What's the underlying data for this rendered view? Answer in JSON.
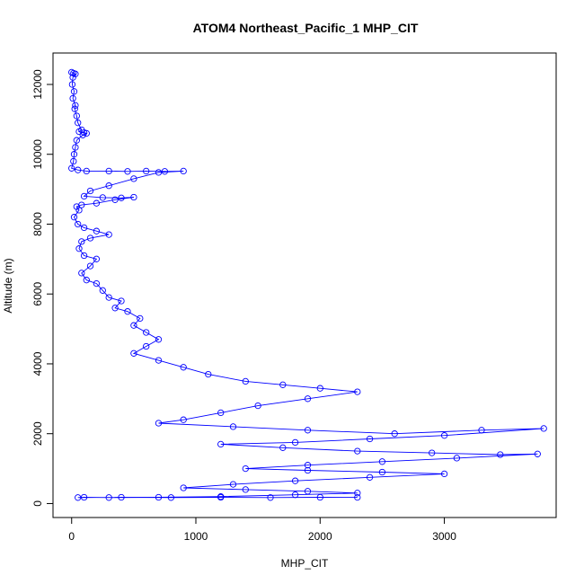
{
  "chart_data": {
    "type": "line",
    "title": "ATOM4 Northeast_Pacific_1 MHP_CIT",
    "xlabel": "MHP_CIT",
    "ylabel": "Altitude (m)",
    "xlim": [
      -150,
      3900
    ],
    "ylim": [
      -400,
      12900
    ],
    "x_ticks": [
      0,
      1000,
      2000,
      3000
    ],
    "x_tick_labels": [
      "0",
      "1000",
      "2000",
      "3000"
    ],
    "y_ticks": [
      0,
      2000,
      4000,
      6000,
      8000,
      10000,
      12000
    ],
    "y_tick_labels": [
      "0",
      "2000",
      "4000",
      "6000",
      "8000",
      "10000",
      "12000"
    ],
    "grid": false,
    "marker": "open-circle",
    "series": [
      {
        "color": "#0000ff",
        "points": [
          [
            0,
            12350
          ],
          [
            15,
            12320
          ],
          [
            30,
            12300
          ],
          [
            10,
            12200
          ],
          [
            5,
            12000
          ],
          [
            20,
            11800
          ],
          [
            10,
            11600
          ],
          [
            30,
            11400
          ],
          [
            25,
            11300
          ],
          [
            40,
            11100
          ],
          [
            50,
            10900
          ],
          [
            80,
            10700
          ],
          [
            60,
            10650
          ],
          [
            100,
            10620
          ],
          [
            120,
            10600
          ],
          [
            90,
            10550
          ],
          [
            40,
            10400
          ],
          [
            30,
            10200
          ],
          [
            20,
            10000
          ],
          [
            15,
            9800
          ],
          [
            0,
            9600
          ],
          [
            50,
            9550
          ],
          [
            120,
            9520
          ],
          [
            300,
            9520
          ],
          [
            450,
            9510
          ],
          [
            600,
            9520
          ],
          [
            750,
            9510
          ],
          [
            900,
            9520
          ],
          [
            700,
            9480
          ],
          [
            500,
            9300
          ],
          [
            300,
            9100
          ],
          [
            150,
            8950
          ],
          [
            100,
            8800
          ],
          [
            250,
            8760
          ],
          [
            400,
            8750
          ],
          [
            500,
            8770
          ],
          [
            350,
            8700
          ],
          [
            200,
            8600
          ],
          [
            80,
            8550
          ],
          [
            40,
            8500
          ],
          [
            60,
            8400
          ],
          [
            20,
            8200
          ],
          [
            50,
            8000
          ],
          [
            100,
            7900
          ],
          [
            200,
            7800
          ],
          [
            300,
            7700
          ],
          [
            150,
            7600
          ],
          [
            80,
            7500
          ],
          [
            60,
            7300
          ],
          [
            100,
            7100
          ],
          [
            200,
            7000
          ],
          [
            150,
            6800
          ],
          [
            80,
            6600
          ],
          [
            120,
            6400
          ],
          [
            200,
            6300
          ],
          [
            250,
            6100
          ],
          [
            300,
            5900
          ],
          [
            400,
            5800
          ],
          [
            350,
            5600
          ],
          [
            450,
            5500
          ],
          [
            550,
            5300
          ],
          [
            500,
            5100
          ],
          [
            600,
            4900
          ],
          [
            700,
            4700
          ],
          [
            600,
            4500
          ],
          [
            500,
            4300
          ],
          [
            700,
            4100
          ],
          [
            900,
            3900
          ],
          [
            1100,
            3700
          ],
          [
            1400,
            3500
          ],
          [
            1700,
            3400
          ],
          [
            2000,
            3300
          ],
          [
            2300,
            3200
          ],
          [
            1900,
            3000
          ],
          [
            1500,
            2800
          ],
          [
            1200,
            2600
          ],
          [
            900,
            2400
          ],
          [
            700,
            2300
          ],
          [
            1300,
            2200
          ],
          [
            1900,
            2100
          ],
          [
            2600,
            2000
          ],
          [
            3300,
            2100
          ],
          [
            3800,
            2150
          ],
          [
            3000,
            1950
          ],
          [
            2400,
            1850
          ],
          [
            1800,
            1750
          ],
          [
            1200,
            1700
          ],
          [
            1700,
            1600
          ],
          [
            2300,
            1500
          ],
          [
            2900,
            1450
          ],
          [
            3450,
            1400
          ],
          [
            3750,
            1420
          ],
          [
            3100,
            1300
          ],
          [
            2500,
            1200
          ],
          [
            1900,
            1100
          ],
          [
            1400,
            1000
          ],
          [
            1900,
            950
          ],
          [
            2500,
            900
          ],
          [
            3000,
            850
          ],
          [
            2400,
            750
          ],
          [
            1800,
            650
          ],
          [
            1300,
            550
          ],
          [
            900,
            450
          ],
          [
            1400,
            400
          ],
          [
            1900,
            350
          ],
          [
            2300,
            300
          ],
          [
            1800,
            250
          ],
          [
            1200,
            200
          ],
          [
            700,
            180
          ],
          [
            300,
            170
          ],
          [
            100,
            180
          ],
          [
            50,
            170
          ],
          [
            400,
            180
          ],
          [
            800,
            170
          ],
          [
            1200,
            180
          ],
          [
            1600,
            170
          ],
          [
            2000,
            180
          ],
          [
            2300,
            175
          ]
        ]
      }
    ]
  }
}
